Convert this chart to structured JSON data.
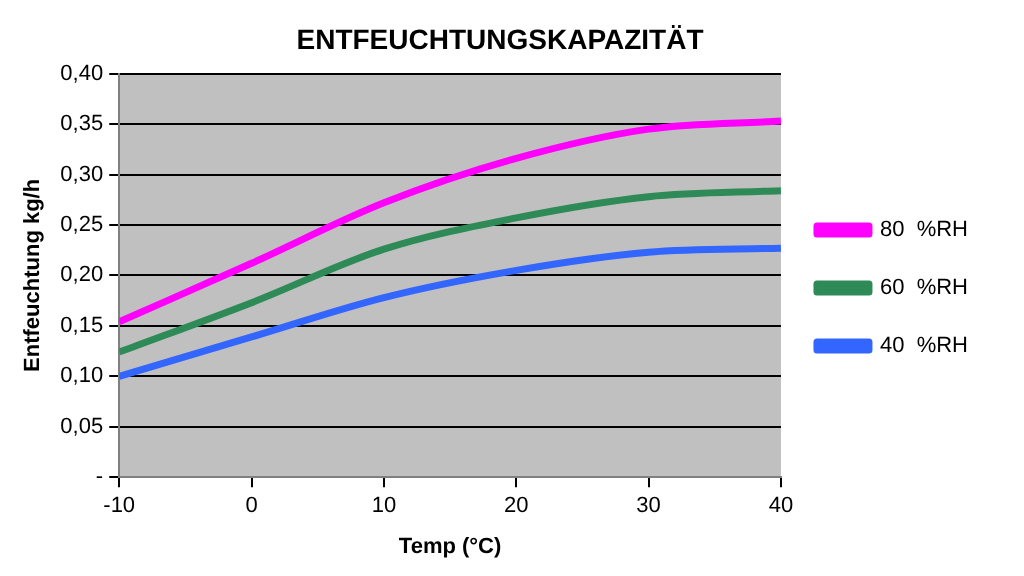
{
  "chart_data": {
    "type": "line",
    "title": "ENTFEUCHTUNGSKAPAZITÄT",
    "xlabel": "Temp (°C)",
    "ylabel": "Entfeuchtung kg/h",
    "x": [
      -10,
      0,
      10,
      20,
      30,
      40
    ],
    "series": [
      {
        "name": "80  %RH",
        "color": "#ff00ff",
        "values": [
          0.154,
          0.212,
          0.272,
          0.316,
          0.345,
          0.353
        ]
      },
      {
        "name": "60  %RH",
        "color": "#2e8b57",
        "values": [
          0.124,
          0.173,
          0.226,
          0.257,
          0.278,
          0.284
        ]
      },
      {
        "name": "40  %RH",
        "color": "#3366ff",
        "values": [
          0.1,
          0.139,
          0.178,
          0.205,
          0.223,
          0.227
        ]
      }
    ],
    "xlim": [
      -10,
      40
    ],
    "xticks": [
      -10,
      0,
      10,
      20,
      30,
      40
    ],
    "ylim": [
      0,
      0.4
    ],
    "yticks": [
      {
        "value": 0,
        "label": "-"
      },
      {
        "value": 0.05,
        "label": "0,05"
      },
      {
        "value": 0.1,
        "label": "0,10"
      },
      {
        "value": 0.15,
        "label": "0,15"
      },
      {
        "value": 0.2,
        "label": "0,20"
      },
      {
        "value": 0.25,
        "label": "0,25"
      },
      {
        "value": 0.3,
        "label": "0,30"
      },
      {
        "value": 0.35,
        "label": "0,35"
      },
      {
        "value": 0.4,
        "label": "0,40"
      }
    ],
    "grid": "y",
    "legend": "right",
    "marker": "none",
    "line_style": "solid"
  }
}
